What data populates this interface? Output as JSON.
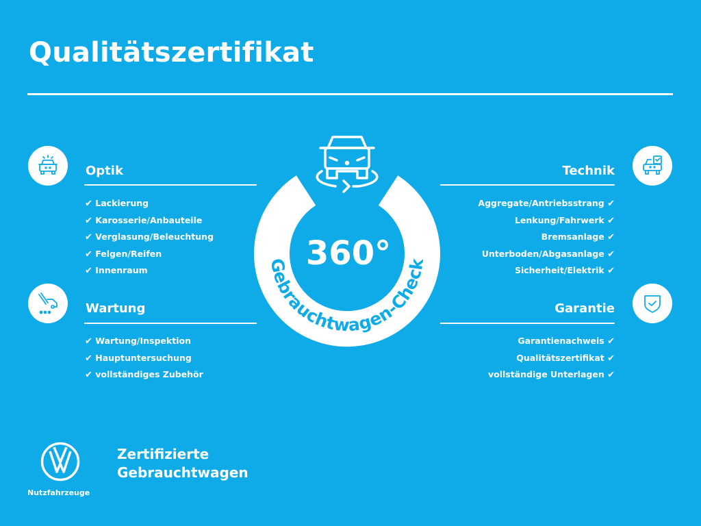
{
  "title": "Qualitätszertifikat",
  "colors": {
    "background": "#0fabe8",
    "foreground": "#ffffff"
  },
  "check_glyph": "✔",
  "center_badge": {
    "big": "360°",
    "arc_text": "Gebrauchtwagen-Check",
    "icon": "car-rotate-icon"
  },
  "sections": {
    "optik": {
      "heading": "Optik",
      "icon": "car-lights-icon",
      "items": [
        "Lackierung",
        "Karosserie/Anbauteile",
        "Verglasung/Beleuchtung",
        "Felgen/Reifen",
        "Innenraum"
      ]
    },
    "wartung": {
      "heading": "Wartung",
      "icon": "wrench-van-icon",
      "items": [
        "Wartung/Inspektion",
        "Hauptuntersuchung",
        "vollständiges Zubehör"
      ]
    },
    "technik": {
      "heading": "Technik",
      "icon": "car-checklist-icon",
      "items": [
        "Aggregate/Antriebsstrang",
        "Lenkung/Fahrwerk",
        "Bremsanlage",
        "Unterboden/Abgasanlage",
        "Sicherheit/Elektrik"
      ]
    },
    "garantie": {
      "heading": "Garantie",
      "icon": "shield-check-icon",
      "items": [
        "Garantienachweis",
        "Qualitätszertifikat",
        "vollständige Unterlagen"
      ]
    }
  },
  "footer": {
    "logo": "VW",
    "logo_sub": "Nutzfahrzeuge",
    "line1": "Zertifizierte",
    "line2": "Gebrauchtwagen"
  }
}
